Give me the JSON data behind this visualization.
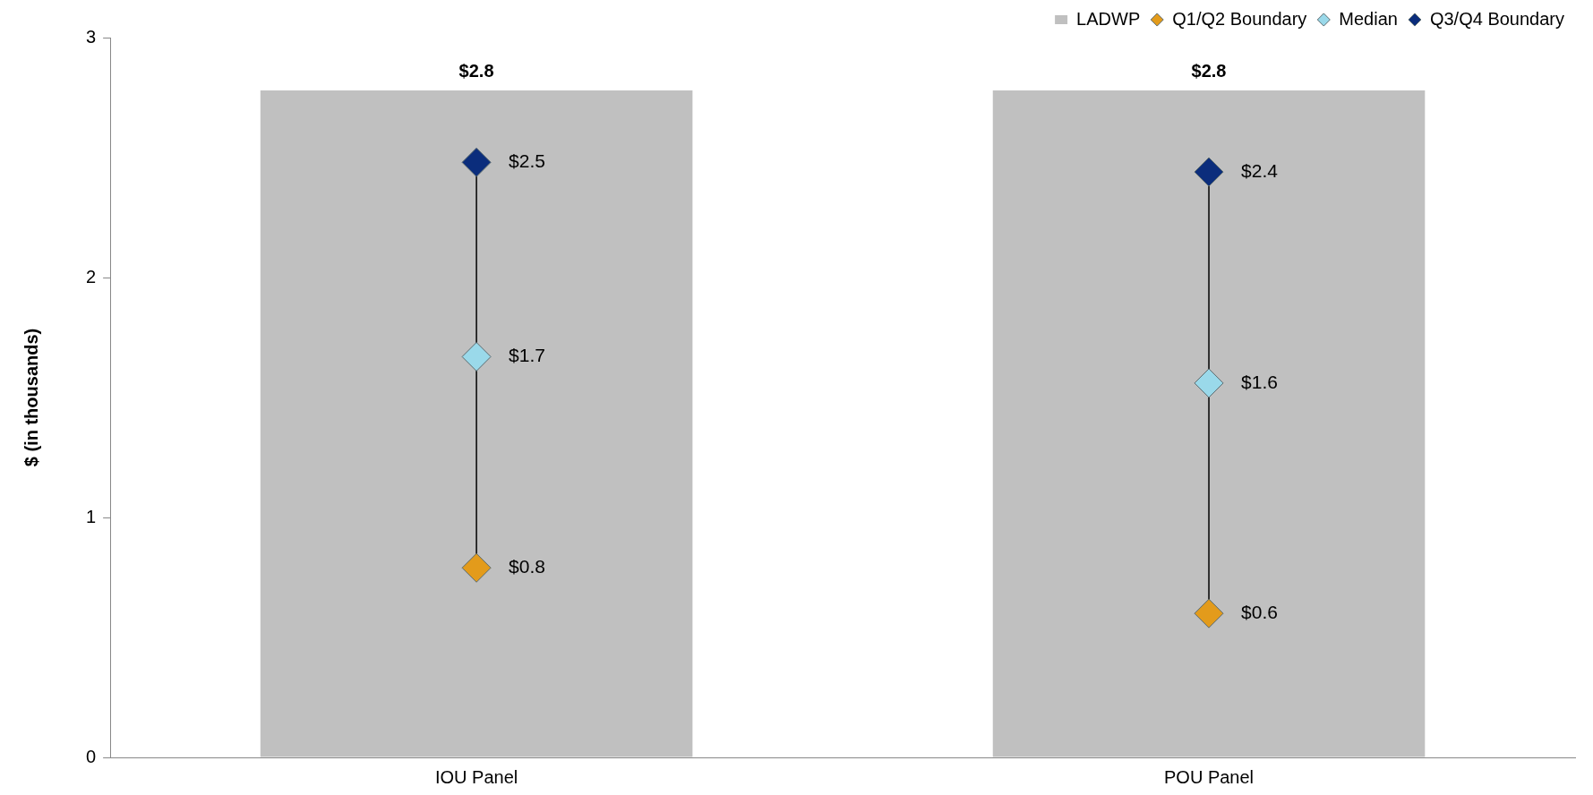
{
  "chart_data": {
    "type": "bar",
    "ylabel": "$ (in thousands)",
    "categories": [
      "IOU Panel",
      "POU Panel"
    ],
    "ylim": [
      0,
      3
    ],
    "yticks": [
      0,
      1,
      2,
      3
    ],
    "grid": false,
    "legend": "top right",
    "marker": "diamond",
    "series": [
      {
        "name": "LADWP",
        "color": "#c0c0c0",
        "values": [
          2.78,
          2.78
        ],
        "value_labels": [
          "$2.8",
          "$2.8"
        ]
      },
      {
        "name": "Q1/Q2 Boundary",
        "type": "scatter",
        "color": "#e39b1b",
        "x": [
          "IOU Panel",
          "POU Panel"
        ],
        "values": [
          0.79,
          0.6
        ],
        "value_labels": [
          "$0.8",
          "$0.6"
        ]
      },
      {
        "name": "Median",
        "type": "scatter",
        "color": "#9ad9ea",
        "x": [
          "IOU Panel",
          "POU Panel"
        ],
        "values": [
          1.67,
          1.56
        ],
        "value_labels": [
          "$1.7",
          "$1.6"
        ]
      },
      {
        "name": "Q3/Q4 Boundary",
        "type": "scatter",
        "color": "#0b2d7c",
        "x": [
          "IOU Panel",
          "POU Panel"
        ],
        "values": [
          2.48,
          2.44
        ],
        "value_labels": [
          "$2.5",
          "$2.4"
        ]
      }
    ]
  }
}
